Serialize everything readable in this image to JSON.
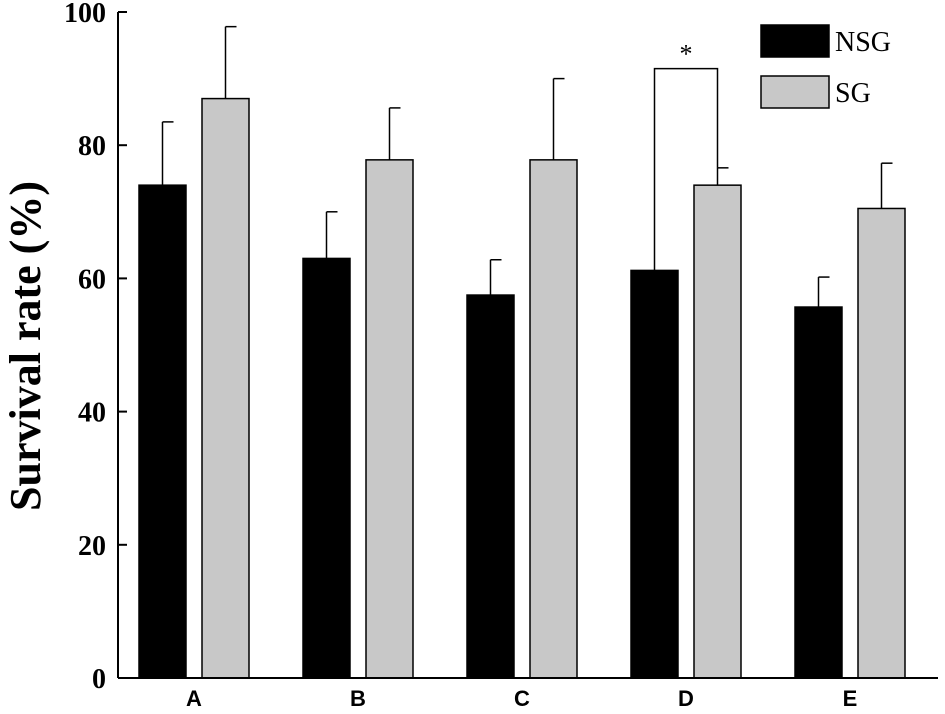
{
  "chart_data": {
    "type": "bar",
    "categories": [
      "A",
      "B",
      "C",
      "D",
      "E"
    ],
    "series": [
      {
        "name": "NSG",
        "color": "#000000",
        "values": [
          74,
          63,
          57.5,
          61.2,
          55.7
        ],
        "errors": [
          9.5,
          7,
          5.3,
          0,
          4.5
        ]
      },
      {
        "name": "SG",
        "color": "#c8c8c8",
        "values": [
          87,
          77.8,
          77.8,
          74,
          70.5
        ],
        "errors": [
          10.8,
          7.8,
          12.2,
          2.6,
          6.8
        ]
      }
    ],
    "ylabel": "Survival rate (%)",
    "ylim": [
      0,
      100
    ],
    "yticks": [
      0,
      20,
      40,
      60,
      80,
      100
    ],
    "legend": "top-right",
    "annotations": [
      {
        "text": "*",
        "category": "D",
        "y_level": 91.5
      }
    ]
  }
}
